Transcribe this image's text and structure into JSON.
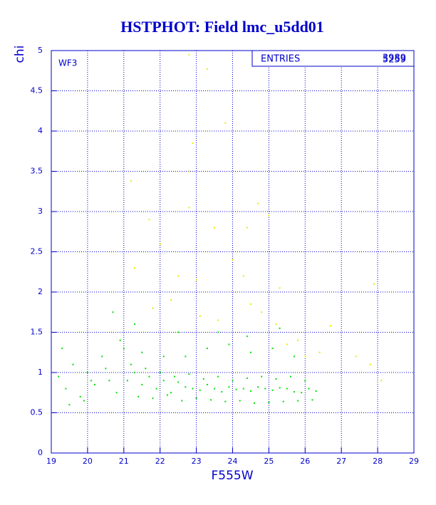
{
  "chart_data": {
    "type": "scatter",
    "title": "HSTPHOT: Field lmc_u5dd01",
    "x_label": "F555W",
    "y_label": "chi",
    "annotation": "WF3",
    "stats": {
      "label": "ENTRIES",
      "values": [
        "3989",
        "5259"
      ]
    },
    "xlim": [
      19,
      29
    ],
    "xticks": [
      19,
      20,
      21,
      22,
      23,
      24,
      25,
      26,
      27,
      28,
      29
    ],
    "ylim": [
      0,
      5
    ],
    "yticks": [
      0,
      0.5,
      1,
      1.5,
      2,
      2.5,
      3,
      3.5,
      4,
      4.5,
      5
    ],
    "grid": true,
    "series": [
      {
        "color": "#00e000",
        "x": [
          19.2,
          19.4,
          19.6,
          19.8,
          20.0,
          20.2,
          20.4,
          20.6,
          20.8,
          19.3,
          19.9,
          20.5,
          20.9,
          19.5,
          20.1,
          21.1,
          21.3,
          21.5,
          21.7,
          21.9,
          22.1,
          22.3,
          22.5,
          22.7,
          22.9,
          23.1,
          23.3,
          23.5,
          23.7,
          23.9,
          24.1,
          24.3,
          24.5,
          24.7,
          24.9,
          25.1,
          25.3,
          25.5,
          25.7,
          25.9,
          26.1,
          26.3,
          21.2,
          21.6,
          22.0,
          22.4,
          22.8,
          23.2,
          23.6,
          24.0,
          24.4,
          24.8,
          25.2,
          25.6,
          26.0,
          21.4,
          21.8,
          22.2,
          22.6,
          23.0,
          23.4,
          23.8,
          24.2,
          24.6,
          25.0,
          25.4,
          25.8,
          26.2,
          21.0,
          21.5,
          22.1,
          22.7,
          23.3,
          23.9,
          24.5,
          25.1,
          25.7,
          20.7,
          21.3,
          22.5,
          23.6,
          24.4,
          25.3
        ],
        "values": [
          0.95,
          0.8,
          1.1,
          0.7,
          1.0,
          0.85,
          1.2,
          0.9,
          0.75,
          1.3,
          0.65,
          1.05,
          1.4,
          0.6,
          0.9,
          0.9,
          1.0,
          0.85,
          0.95,
          0.8,
          0.9,
          0.75,
          0.88,
          0.82,
          0.8,
          0.78,
          0.85,
          0.8,
          0.76,
          0.82,
          0.79,
          0.8,
          0.77,
          0.82,
          0.8,
          0.78,
          0.81,
          0.8,
          0.76,
          0.75,
          0.8,
          0.77,
          1.1,
          1.05,
          1.0,
          0.95,
          0.98,
          0.92,
          0.95,
          0.9,
          0.93,
          0.95,
          0.92,
          0.95,
          0.9,
          0.7,
          0.68,
          0.72,
          0.65,
          0.68,
          0.66,
          0.64,
          0.65,
          0.62,
          0.63,
          0.64,
          0.65,
          0.66,
          1.3,
          1.25,
          1.2,
          1.2,
          1.3,
          1.35,
          1.25,
          1.3,
          1.2,
          1.75,
          1.6,
          1.5,
          1.5,
          1.45,
          1.55
        ]
      },
      {
        "color": "#e8e800",
        "x": [
          22.8,
          23.3,
          23.8,
          22.9,
          22.8,
          21.2,
          22.8,
          24.4,
          23.5,
          21.7,
          25.0,
          24.7,
          21.3,
          22.5,
          23.0,
          24.0,
          24.3,
          25.3,
          27.9,
          21.8,
          22.3,
          23.1,
          23.6,
          24.8,
          25.2,
          26.7,
          25.5,
          26.0,
          26.4,
          27.4,
          27.8,
          28.1,
          25.8,
          24.5,
          22.0
        ],
        "values": [
          4.95,
          4.77,
          4.1,
          3.85,
          3.5,
          3.38,
          3.05,
          2.8,
          2.8,
          2.9,
          2.95,
          3.1,
          2.3,
          2.2,
          2.15,
          2.4,
          2.2,
          2.05,
          2.1,
          1.8,
          1.9,
          1.7,
          1.65,
          1.75,
          1.6,
          1.58,
          1.35,
          1.2,
          1.25,
          1.2,
          1.1,
          0.9,
          1.4,
          1.85,
          2.6
        ]
      }
    ]
  }
}
